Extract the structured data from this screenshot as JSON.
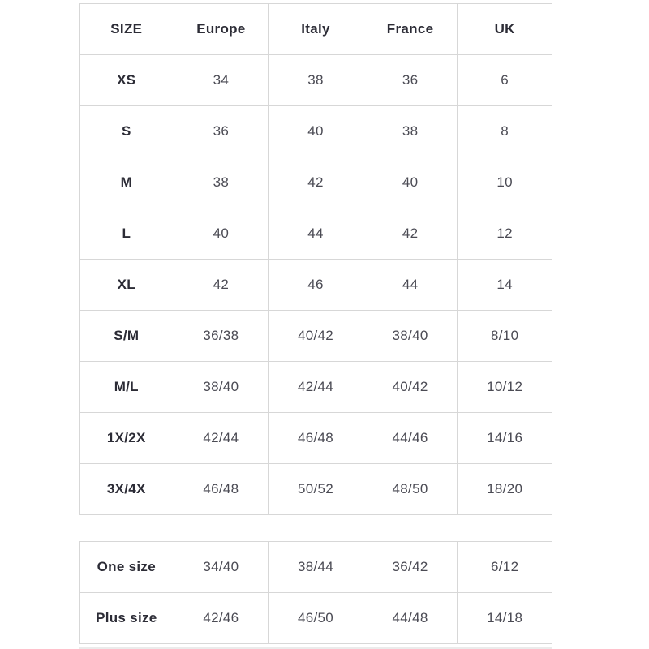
{
  "colors": {
    "background": "#ffffff",
    "border": "#d7d7d7",
    "header_text": "#2c2c36",
    "cell_text": "#4b4b54"
  },
  "size_table": {
    "headers": [
      "SIZE",
      "Europe",
      "Italy",
      "France",
      "UK"
    ],
    "rows": [
      [
        "XS",
        "34",
        "38",
        "36",
        "6"
      ],
      [
        "S",
        "36",
        "40",
        "38",
        "8"
      ],
      [
        "M",
        "38",
        "42",
        "40",
        "10"
      ],
      [
        "L",
        "40",
        "44",
        "42",
        "12"
      ],
      [
        "XL",
        "42",
        "46",
        "44",
        "14"
      ],
      [
        "S/M",
        "36/38",
        "40/42",
        "38/40",
        "8/10"
      ],
      [
        "M/L",
        "38/40",
        "42/44",
        "40/42",
        "10/12"
      ],
      [
        "1X/2X",
        "42/44",
        "46/48",
        "44/46",
        "14/16"
      ],
      [
        "3X/4X",
        "46/48",
        "50/52",
        "48/50",
        "18/20"
      ]
    ]
  },
  "special_table": {
    "rows": [
      [
        "One size",
        "34/40",
        "38/44",
        "36/42",
        "6/12"
      ],
      [
        "Plus size",
        "42/46",
        "46/50",
        "44/48",
        "14/18"
      ]
    ]
  }
}
